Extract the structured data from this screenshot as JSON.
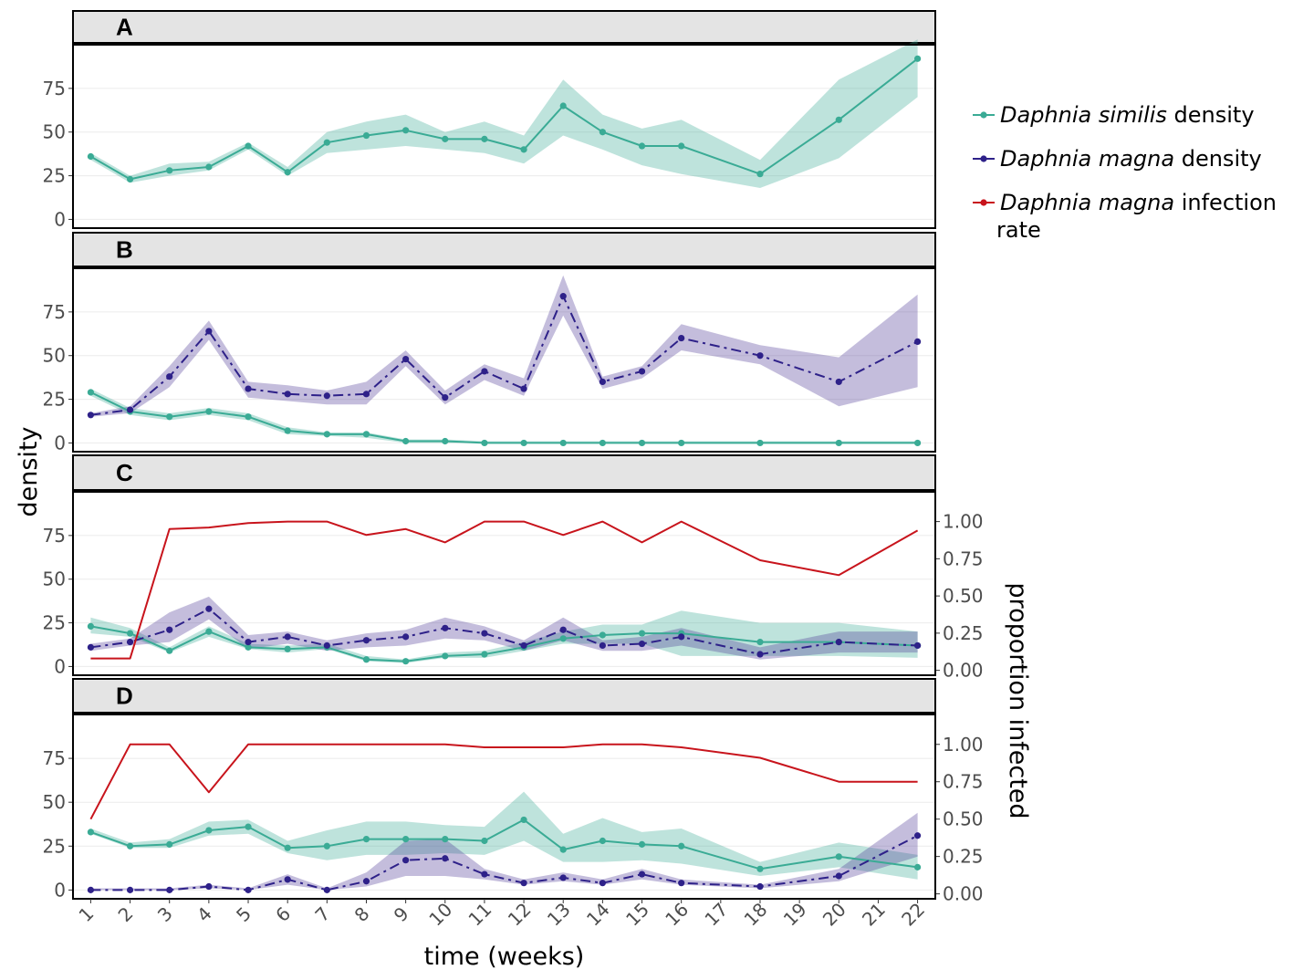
{
  "chart_data": {
    "type": "line",
    "xlabel": "time (weeks)",
    "ylabel": "density",
    "y2label": "proportion infected",
    "x_ticks": [
      1,
      2,
      3,
      4,
      5,
      6,
      7,
      8,
      9,
      10,
      11,
      12,
      13,
      14,
      15,
      16,
      17,
      18,
      19,
      20,
      21,
      22
    ],
    "y_ticks": [
      0,
      25,
      50,
      75
    ],
    "ylim": [
      -5,
      100
    ],
    "y2_ticks": [
      "0.00",
      "0.25",
      "0.50",
      "0.75",
      "1.00"
    ],
    "y2_tick_values": [
      0,
      0.25,
      0.5,
      0.75,
      1.0
    ],
    "y2lim": [
      -0.033,
      1.2
    ],
    "colors": {
      "similis": "#3aab95",
      "magna": "#2e2189",
      "infection": "#c8141c",
      "similis_band": "#3aab95",
      "magna_band": "#4b3896"
    },
    "legend": [
      {
        "series": "similis",
        "italic": "Daphnia similis",
        "text": " density"
      },
      {
        "series": "magna",
        "italic": "Daphnia magna",
        "text": " density"
      },
      {
        "series": "infection",
        "italic": "Daphnia magna",
        "text": " infection",
        "text2": "rate"
      }
    ],
    "panels": [
      {
        "label": "A",
        "secondary_axis": false,
        "series": [
          {
            "key": "similis",
            "style": "solid",
            "points": true,
            "x": [
              1,
              2,
              3,
              4,
              5,
              6,
              7,
              8,
              9,
              10,
              11,
              12,
              13,
              14,
              15,
              16,
              18,
              20,
              22
            ],
            "y": [
              36,
              23,
              28,
              30,
              42,
              27,
              44,
              48,
              51,
              46,
              46,
              40,
              65,
              50,
              42,
              42,
              26,
              57,
              92
            ],
            "lo": [
              34,
              21,
              25,
              28,
              40,
              25,
              38,
              40,
              42,
              40,
              38,
              32,
              48,
              40,
              31,
              26,
              18,
              35,
              70
            ],
            "hi": [
              38,
              25,
              32,
              33,
              44,
              30,
              50,
              56,
              60,
              50,
              56,
              48,
              80,
              60,
              52,
              57,
              34,
              80,
              103
            ]
          }
        ]
      },
      {
        "label": "B",
        "secondary_axis": false,
        "series": [
          {
            "key": "similis",
            "style": "solid",
            "points": true,
            "x": [
              1,
              2,
              3,
              4,
              5,
              6,
              7,
              8,
              9,
              10,
              11,
              12,
              13,
              14,
              15,
              16,
              18,
              20,
              22
            ],
            "y": [
              29,
              18,
              15,
              18,
              15,
              7,
              5,
              5,
              1,
              1,
              0,
              0,
              0,
              0,
              0,
              0,
              0,
              0,
              0
            ],
            "lo": [
              27,
              16,
              13,
              16,
              13,
              5,
              4,
              3,
              0,
              0,
              0,
              0,
              0,
              0,
              0,
              0,
              0,
              0,
              0
            ],
            "hi": [
              31,
              20,
              17,
              20,
              17,
              9,
              6,
              6,
              2,
              2,
              1,
              1,
              1,
              1,
              1,
              1,
              1,
              1,
              1
            ]
          },
          {
            "key": "magna",
            "style": "dashdot",
            "points": true,
            "x": [
              1,
              2,
              3,
              4,
              5,
              6,
              7,
              8,
              9,
              10,
              11,
              12,
              13,
              14,
              15,
              16,
              18,
              20,
              22
            ],
            "y": [
              16,
              19,
              38,
              64,
              31,
              28,
              27,
              28,
              48,
              26,
              41,
              31,
              84,
              35,
              41,
              60,
              50,
              35,
              58
            ],
            "lo": [
              15,
              17,
              32,
              59,
              26,
              24,
              22,
              22,
              44,
              22,
              36,
              27,
              73,
              31,
              37,
              53,
              45,
              21,
              32
            ],
            "hi": [
              17,
              21,
              44,
              70,
              35,
              33,
              30,
              35,
              53,
              30,
              45,
              37,
              96,
              38,
              44,
              68,
              56,
              49,
              85
            ]
          }
        ]
      },
      {
        "label": "C",
        "secondary_axis": true,
        "series": [
          {
            "key": "similis",
            "style": "solid",
            "points": true,
            "x": [
              1,
              2,
              3,
              4,
              5,
              6,
              7,
              8,
              9,
              10,
              11,
              12,
              13,
              14,
              15,
              16,
              18,
              20,
              22
            ],
            "y": [
              23,
              19,
              9,
              20,
              11,
              10,
              11,
              4,
              3,
              6,
              7,
              11,
              16,
              18,
              19,
              19,
              14,
              14,
              12
            ],
            "lo": [
              19,
              17,
              8,
              17,
              10,
              8,
              10,
              3,
              2,
              5,
              5,
              9,
              13,
              13,
              13,
              6,
              6,
              6,
              5
            ],
            "hi": [
              28,
              22,
              11,
              23,
              13,
              12,
              13,
              6,
              4,
              8,
              9,
              14,
              20,
              24,
              24,
              32,
              25,
              25,
              20
            ]
          },
          {
            "key": "magna",
            "style": "dashdot",
            "points": true,
            "x": [
              1,
              2,
              3,
              4,
              5,
              6,
              7,
              8,
              9,
              10,
              11,
              12,
              13,
              14,
              15,
              16,
              18,
              20,
              22
            ],
            "y": [
              11,
              14,
              21,
              33,
              14,
              17,
              12,
              15,
              17,
              22,
              19,
              12,
              21,
              12,
              13,
              17,
              7,
              14,
              12
            ],
            "lo": [
              9,
              12,
              14,
              27,
              10,
              13,
              9,
              11,
              12,
              16,
              15,
              9,
              15,
              9,
              9,
              12,
              4,
              8,
              8
            ],
            "hi": [
              13,
              16,
              31,
              40,
              18,
              20,
              15,
              19,
              21,
              28,
              23,
              15,
              28,
              15,
              17,
              22,
              11,
              20,
              20
            ]
          },
          {
            "key": "infection",
            "style": "solid",
            "points": false,
            "axis": "y2",
            "x": [
              1,
              2,
              3,
              4,
              5,
              6,
              7,
              8,
              9,
              10,
              11,
              12,
              13,
              14,
              15,
              16,
              18,
              20,
              22
            ],
            "y": [
              0.08,
              0.08,
              0.95,
              0.96,
              0.99,
              1.0,
              1.0,
              0.91,
              0.95,
              0.86,
              1.0,
              1.0,
              0.91,
              1.0,
              0.86,
              1.0,
              0.74,
              0.64,
              0.94
            ]
          }
        ]
      },
      {
        "label": "D",
        "secondary_axis": true,
        "series": [
          {
            "key": "similis",
            "style": "solid",
            "points": true,
            "x": [
              1,
              2,
              3,
              4,
              5,
              6,
              7,
              8,
              9,
              10,
              11,
              12,
              13,
              14,
              15,
              16,
              18,
              20,
              22
            ],
            "y": [
              33,
              25,
              26,
              34,
              36,
              24,
              25,
              29,
              29,
              29,
              28,
              40,
              23,
              28,
              26,
              25,
              12,
              19,
              13
            ],
            "lo": [
              32,
              24,
              24,
              31,
              32,
              21,
              17,
              20,
              20,
              21,
              20,
              28,
              16,
              16,
              17,
              15,
              8,
              13,
              6
            ],
            "hi": [
              35,
              27,
              29,
              39,
              40,
              28,
              34,
              39,
              39,
              37,
              36,
              56,
              32,
              41,
              33,
              35,
              16,
              27,
              20
            ]
          },
          {
            "key": "magna",
            "style": "dashdot",
            "points": true,
            "x": [
              1,
              2,
              3,
              4,
              5,
              6,
              7,
              8,
              9,
              10,
              11,
              12,
              13,
              14,
              15,
              16,
              18,
              20,
              22
            ],
            "y": [
              0,
              0,
              0,
              2,
              0,
              6,
              0,
              5,
              17,
              18,
              9,
              4,
              7,
              4,
              9,
              4,
              2,
              8,
              31
            ],
            "lo": [
              0,
              0,
              0,
              1,
              0,
              3,
              0,
              2,
              8,
              8,
              6,
              3,
              5,
              3,
              6,
              3,
              1,
              5,
              19
            ],
            "hi": [
              1,
              1,
              1,
              3,
              1,
              9,
              1,
              10,
              28,
              29,
              12,
              6,
              10,
              6,
              12,
              6,
              3,
              12,
              44
            ]
          },
          {
            "key": "infection",
            "style": "solid",
            "points": false,
            "axis": "y2",
            "x": [
              1,
              2,
              3,
              4,
              5,
              6,
              7,
              8,
              9,
              10,
              11,
              12,
              13,
              14,
              15,
              16,
              18,
              20,
              22
            ],
            "y": [
              0.5,
              1.0,
              1.0,
              0.68,
              1.0,
              1.0,
              1.0,
              1.0,
              1.0,
              1.0,
              0.98,
              0.98,
              0.98,
              1.0,
              1.0,
              0.98,
              0.91,
              0.75,
              0.75
            ]
          }
        ]
      }
    ]
  }
}
